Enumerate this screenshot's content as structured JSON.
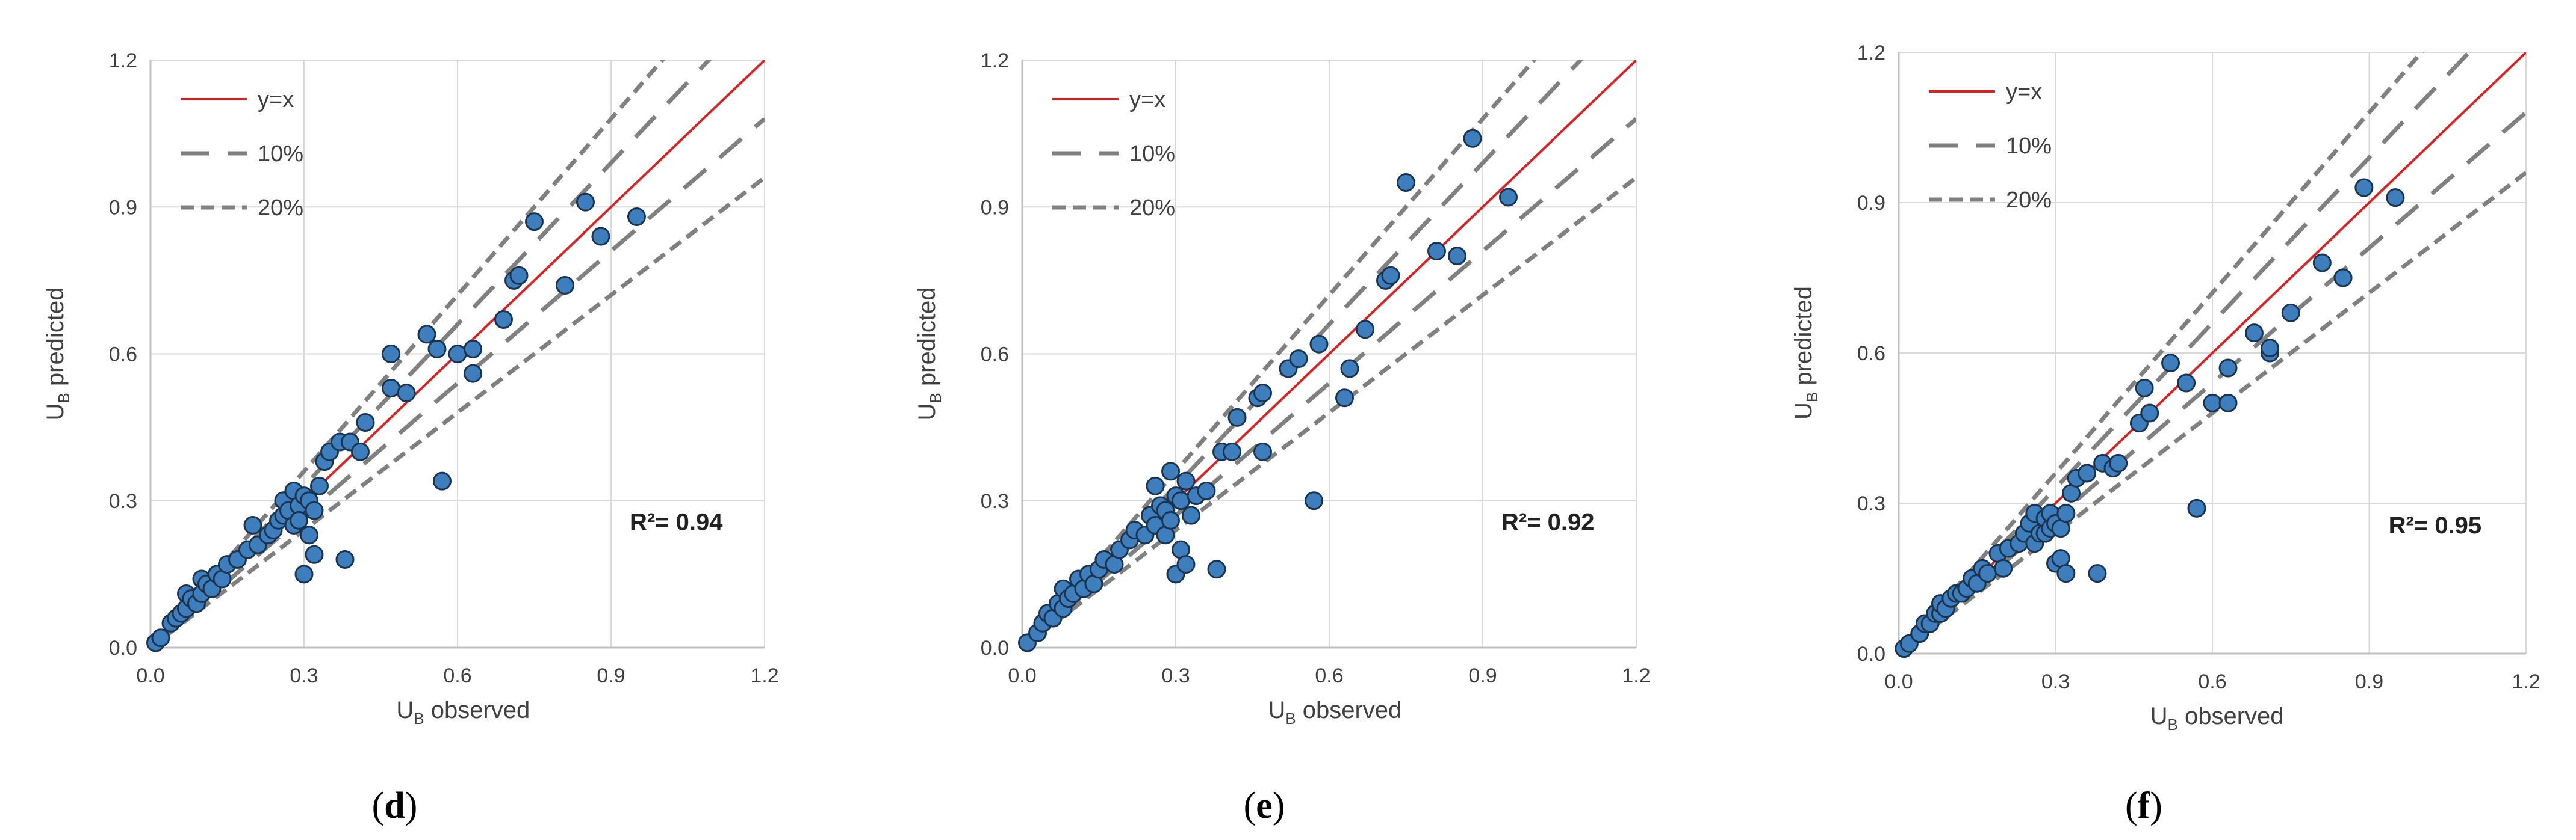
{
  "chart_data": [
    {
      "type": "scatter",
      "panel_label": "(d)",
      "xlabel_main": "U",
      "xlabel_sub": "B",
      "xlabel_rest": " observed",
      "ylabel_main": "U",
      "ylabel_sub": "B",
      "ylabel_rest": " predicted",
      "xlim": [
        0,
        1.2
      ],
      "ylim": [
        0,
        1.2
      ],
      "xticks": [
        "0.0",
        "0.3",
        "0.6",
        "0.9",
        "1.2"
      ],
      "yticks": [
        "0.0",
        "0.3",
        "0.6",
        "0.9",
        "1.2"
      ],
      "legend": [
        "y=x",
        "10%",
        "20%"
      ],
      "r2_text": "R²= 0.94",
      "points": [
        [
          0.01,
          0.01
        ],
        [
          0.02,
          0.02
        ],
        [
          0.04,
          0.05
        ],
        [
          0.05,
          0.06
        ],
        [
          0.06,
          0.07
        ],
        [
          0.07,
          0.08
        ],
        [
          0.07,
          0.11
        ],
        [
          0.08,
          0.1
        ],
        [
          0.09,
          0.09
        ],
        [
          0.1,
          0.11
        ],
        [
          0.1,
          0.14
        ],
        [
          0.11,
          0.13
        ],
        [
          0.12,
          0.12
        ],
        [
          0.13,
          0.15
        ],
        [
          0.14,
          0.14
        ],
        [
          0.15,
          0.17
        ],
        [
          0.17,
          0.18
        ],
        [
          0.19,
          0.2
        ],
        [
          0.2,
          0.25
        ],
        [
          0.21,
          0.21
        ],
        [
          0.23,
          0.23
        ],
        [
          0.24,
          0.24
        ],
        [
          0.25,
          0.26
        ],
        [
          0.26,
          0.27
        ],
        [
          0.26,
          0.3
        ],
        [
          0.27,
          0.28
        ],
        [
          0.28,
          0.32
        ],
        [
          0.28,
          0.25
        ],
        [
          0.29,
          0.29
        ],
        [
          0.29,
          0.26
        ],
        [
          0.3,
          0.31
        ],
        [
          0.3,
          0.15
        ],
        [
          0.31,
          0.3
        ],
        [
          0.31,
          0.23
        ],
        [
          0.32,
          0.19
        ],
        [
          0.32,
          0.28
        ],
        [
          0.33,
          0.33
        ],
        [
          0.34,
          0.38
        ],
        [
          0.35,
          0.4
        ],
        [
          0.37,
          0.42
        ],
        [
          0.38,
          0.18
        ],
        [
          0.39,
          0.42
        ],
        [
          0.41,
          0.4
        ],
        [
          0.42,
          0.46
        ],
        [
          0.47,
          0.53
        ],
        [
          0.47,
          0.6
        ],
        [
          0.5,
          0.52
        ],
        [
          0.54,
          0.64
        ],
        [
          0.56,
          0.61
        ],
        [
          0.57,
          0.34
        ],
        [
          0.6,
          0.6
        ],
        [
          0.63,
          0.56
        ],
        [
          0.63,
          0.61
        ],
        [
          0.69,
          0.67
        ],
        [
          0.71,
          0.75
        ],
        [
          0.72,
          0.76
        ],
        [
          0.75,
          0.87
        ],
        [
          0.81,
          0.74
        ],
        [
          0.85,
          0.91
        ],
        [
          0.88,
          0.84
        ],
        [
          0.95,
          0.88
        ]
      ]
    },
    {
      "type": "scatter",
      "panel_label": "(e)",
      "xlabel_main": "U",
      "xlabel_sub": "B",
      "xlabel_rest": " observed",
      "ylabel_main": "U",
      "ylabel_sub": "B",
      "ylabel_rest": " predicted",
      "xlim": [
        0,
        1.2
      ],
      "ylim": [
        0,
        1.2
      ],
      "xticks": [
        "0.0",
        "0.3",
        "0.6",
        "0.9",
        "1.2"
      ],
      "yticks": [
        "0.0",
        "0.3",
        "0.6",
        "0.9",
        "1.2"
      ],
      "legend": [
        "y=x",
        "10%",
        "20%"
      ],
      "r2_text": "R²= 0.92",
      "points": [
        [
          0.01,
          0.01
        ],
        [
          0.03,
          0.03
        ],
        [
          0.04,
          0.05
        ],
        [
          0.05,
          0.07
        ],
        [
          0.06,
          0.06
        ],
        [
          0.07,
          0.09
        ],
        [
          0.08,
          0.08
        ],
        [
          0.08,
          0.12
        ],
        [
          0.09,
          0.1
        ],
        [
          0.1,
          0.11
        ],
        [
          0.11,
          0.14
        ],
        [
          0.12,
          0.12
        ],
        [
          0.13,
          0.15
        ],
        [
          0.14,
          0.13
        ],
        [
          0.15,
          0.16
        ],
        [
          0.16,
          0.18
        ],
        [
          0.18,
          0.17
        ],
        [
          0.19,
          0.2
        ],
        [
          0.21,
          0.22
        ],
        [
          0.22,
          0.24
        ],
        [
          0.24,
          0.23
        ],
        [
          0.25,
          0.27
        ],
        [
          0.26,
          0.25
        ],
        [
          0.26,
          0.33
        ],
        [
          0.27,
          0.29
        ],
        [
          0.28,
          0.28
        ],
        [
          0.28,
          0.23
        ],
        [
          0.29,
          0.36
        ],
        [
          0.29,
          0.26
        ],
        [
          0.3,
          0.31
        ],
        [
          0.3,
          0.15
        ],
        [
          0.31,
          0.3
        ],
        [
          0.31,
          0.2
        ],
        [
          0.32,
          0.17
        ],
        [
          0.32,
          0.34
        ],
        [
          0.33,
          0.27
        ],
        [
          0.34,
          0.31
        ],
        [
          0.36,
          0.32
        ],
        [
          0.38,
          0.16
        ],
        [
          0.39,
          0.4
        ],
        [
          0.41,
          0.4
        ],
        [
          0.42,
          0.47
        ],
        [
          0.46,
          0.51
        ],
        [
          0.47,
          0.4
        ],
        [
          0.47,
          0.52
        ],
        [
          0.52,
          0.57
        ],
        [
          0.54,
          0.59
        ],
        [
          0.57,
          0.3
        ],
        [
          0.58,
          0.62
        ],
        [
          0.63,
          0.51
        ],
        [
          0.64,
          0.57
        ],
        [
          0.67,
          0.65
        ],
        [
          0.71,
          0.75
        ],
        [
          0.72,
          0.76
        ],
        [
          0.75,
          0.95
        ],
        [
          0.81,
          0.81
        ],
        [
          0.85,
          0.8
        ],
        [
          0.88,
          1.04
        ],
        [
          0.95,
          0.92
        ]
      ]
    },
    {
      "type": "scatter",
      "panel_label": "(f)",
      "xlabel_main": "U",
      "xlabel_sub": "B",
      "xlabel_rest": " observed",
      "ylabel_main": "U",
      "ylabel_sub": "B",
      "ylabel_rest": " predicted",
      "xlim": [
        0,
        1.2
      ],
      "ylim": [
        0,
        1.2
      ],
      "xticks": [
        "0.0",
        "0.3",
        "0.6",
        "0.9",
        "1.2"
      ],
      "yticks": [
        "0.0",
        "0.3",
        "0.6",
        "0.9",
        "1.2"
      ],
      "legend": [
        "y=x",
        "10%",
        "20%"
      ],
      "r2_text": "R²= 0.95",
      "points": [
        [
          0.01,
          0.01
        ],
        [
          0.02,
          0.02
        ],
        [
          0.04,
          0.04
        ],
        [
          0.05,
          0.06
        ],
        [
          0.06,
          0.06
        ],
        [
          0.07,
          0.08
        ],
        [
          0.08,
          0.08
        ],
        [
          0.08,
          0.1
        ],
        [
          0.09,
          0.09
        ],
        [
          0.1,
          0.11
        ],
        [
          0.11,
          0.12
        ],
        [
          0.12,
          0.12
        ],
        [
          0.13,
          0.13
        ],
        [
          0.14,
          0.15
        ],
        [
          0.15,
          0.14
        ],
        [
          0.16,
          0.17
        ],
        [
          0.17,
          0.16
        ],
        [
          0.19,
          0.2
        ],
        [
          0.2,
          0.17
        ],
        [
          0.21,
          0.21
        ],
        [
          0.23,
          0.22
        ],
        [
          0.24,
          0.24
        ],
        [
          0.25,
          0.26
        ],
        [
          0.26,
          0.22
        ],
        [
          0.26,
          0.28
        ],
        [
          0.27,
          0.24
        ],
        [
          0.28,
          0.27
        ],
        [
          0.28,
          0.24
        ],
        [
          0.29,
          0.28
        ],
        [
          0.29,
          0.25
        ],
        [
          0.3,
          0.26
        ],
        [
          0.3,
          0.18
        ],
        [
          0.31,
          0.25
        ],
        [
          0.31,
          0.19
        ],
        [
          0.32,
          0.16
        ],
        [
          0.32,
          0.28
        ],
        [
          0.33,
          0.32
        ],
        [
          0.34,
          0.35
        ],
        [
          0.36,
          0.36
        ],
        [
          0.38,
          0.16
        ],
        [
          0.39,
          0.38
        ],
        [
          0.41,
          0.37
        ],
        [
          0.42,
          0.38
        ],
        [
          0.46,
          0.46
        ],
        [
          0.47,
          0.53
        ],
        [
          0.48,
          0.48
        ],
        [
          0.52,
          0.58
        ],
        [
          0.55,
          0.54
        ],
        [
          0.57,
          0.29
        ],
        [
          0.6,
          0.5
        ],
        [
          0.63,
          0.5
        ],
        [
          0.63,
          0.57
        ],
        [
          0.68,
          0.64
        ],
        [
          0.71,
          0.6
        ],
        [
          0.71,
          0.61
        ],
        [
          0.75,
          0.68
        ],
        [
          0.81,
          0.78
        ],
        [
          0.85,
          0.75
        ],
        [
          0.89,
          0.93
        ],
        [
          0.95,
          0.91
        ]
      ]
    }
  ],
  "colors": {
    "point_fill": "#3e7ebd",
    "point_stroke": "#1b3550",
    "identity_line": "#e02020",
    "band_line": "#808080",
    "grid": "#d9d9d9",
    "axis": "#bfbfbf",
    "text": "#404040",
    "panel_label": "#000000"
  }
}
